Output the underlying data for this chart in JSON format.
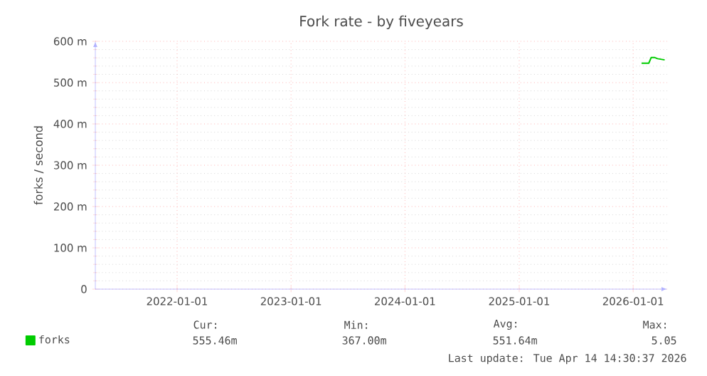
{
  "chart_data": {
    "type": "line",
    "title": "Fork rate - by fiveyears",
    "ylabel": "forks / second",
    "xlim": [
      "2021-04-14",
      "2026-04-20"
    ],
    "xticks": [
      "2022-01-01",
      "2023-01-01",
      "2024-01-01",
      "2025-01-01",
      "2026-01-01"
    ],
    "ylim": [
      0,
      600
    ],
    "yticks": [
      0,
      {
        "value": 100,
        "label": "100 m"
      },
      {
        "value": 200,
        "label": "200 m"
      },
      {
        "value": 300,
        "label": "300 m"
      },
      {
        "value": 400,
        "label": "400 m"
      },
      {
        "value": 500,
        "label": "500 m"
      },
      {
        "value": 600,
        "label": "600 m"
      }
    ],
    "series": [
      {
        "name": "forks",
        "color": "#00cc00",
        "x": [
          "2026-01-28",
          "2026-02-20",
          "2026-02-28",
          "2026-03-10",
          "2026-03-20",
          "2026-04-12"
        ],
        "values": [
          547,
          547,
          561,
          561,
          558,
          555
        ]
      }
    ],
    "grid": true,
    "legend": "bottom left",
    "marker": "none",
    "line_style": "solid",
    "annotations": [
      "Cur:",
      "555.46m",
      "Min:",
      "367.00m",
      "Avg:",
      "551.64m",
      "Max:",
      "5.05",
      "Last update: Tue Apr 14 14:30:37 2026"
    ]
  }
}
